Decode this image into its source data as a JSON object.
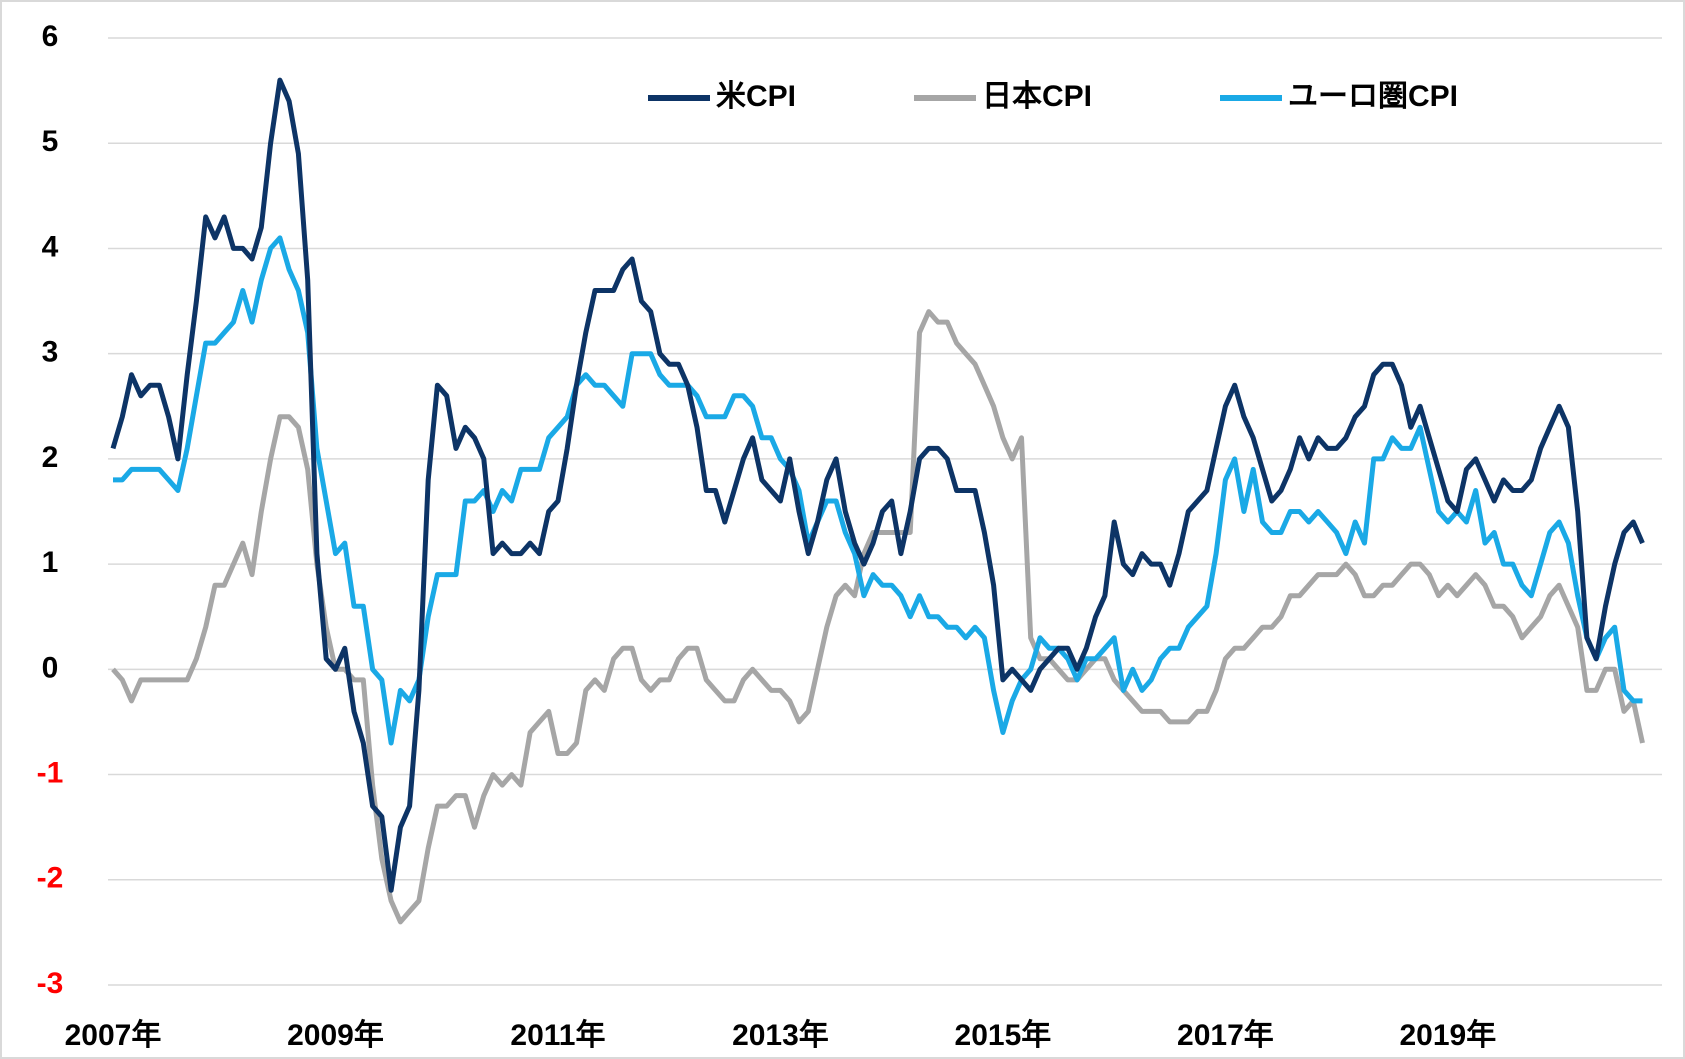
{
  "chart_data": {
    "type": "line",
    "categories": [
      "2007年",
      null,
      null,
      null,
      null,
      null,
      null,
      null,
      null,
      null,
      null,
      null,
      null,
      null,
      null,
      null,
      null,
      null,
      null,
      null,
      null,
      null,
      null,
      null,
      "2009年",
      null,
      null,
      null,
      null,
      null,
      null,
      null,
      null,
      null,
      null,
      null,
      null,
      null,
      null,
      null,
      null,
      null,
      null,
      null,
      null,
      null,
      null,
      null,
      "2011年",
      null,
      null,
      null,
      null,
      null,
      null,
      null,
      null,
      null,
      null,
      null,
      null,
      null,
      null,
      null,
      null,
      null,
      null,
      null,
      null,
      null,
      null,
      null,
      "2013年",
      null,
      null,
      null,
      null,
      null,
      null,
      null,
      null,
      null,
      null,
      null,
      null,
      null,
      null,
      null,
      null,
      null,
      null,
      null,
      null,
      null,
      null,
      null,
      "2015年",
      null,
      null,
      null,
      null,
      null,
      null,
      null,
      null,
      null,
      null,
      null,
      null,
      null,
      null,
      null,
      null,
      null,
      null,
      null,
      null,
      null,
      null,
      null,
      "2017年",
      null,
      null,
      null,
      null,
      null,
      null,
      null,
      null,
      null,
      null,
      null,
      null,
      null,
      null,
      null,
      null,
      null,
      null,
      null,
      null,
      null,
      null,
      null,
      "2019年",
      null,
      null,
      null,
      null,
      null,
      null,
      null,
      null,
      null,
      null,
      null,
      null,
      null,
      null,
      null,
      null,
      null,
      null,
      null,
      null,
      null
    ],
    "series": [
      {
        "name": "米CPI",
        "color": "#0d3466",
        "values": [
          2.1,
          2.4,
          2.8,
          2.6,
          2.7,
          2.7,
          2.4,
          2.0,
          2.8,
          3.5,
          4.3,
          4.1,
          4.3,
          4.0,
          4.0,
          3.9,
          4.2,
          5.0,
          5.6,
          5.4,
          4.9,
          3.7,
          1.1,
          0.1,
          0.0,
          0.2,
          -0.4,
          -0.7,
          -1.3,
          -1.4,
          -2.1,
          -1.5,
          -1.3,
          -0.2,
          1.8,
          2.7,
          2.6,
          2.1,
          2.3,
          2.2,
          2.0,
          1.1,
          1.2,
          1.1,
          1.1,
          1.2,
          1.1,
          1.5,
          1.6,
          2.1,
          2.7,
          3.2,
          3.6,
          3.6,
          3.6,
          3.8,
          3.9,
          3.5,
          3.4,
          3.0,
          2.9,
          2.9,
          2.7,
          2.3,
          1.7,
          1.7,
          1.4,
          1.7,
          2.0,
          2.2,
          1.8,
          1.7,
          1.6,
          2.0,
          1.5,
          1.1,
          1.4,
          1.8,
          2.0,
          1.5,
          1.2,
          1.0,
          1.2,
          1.5,
          1.6,
          1.1,
          1.5,
          2.0,
          2.1,
          2.1,
          2.0,
          1.7,
          1.7,
          1.7,
          1.3,
          0.8,
          -0.1,
          0.0,
          -0.1,
          -0.2,
          0.0,
          0.1,
          0.2,
          0.2,
          0.0,
          0.2,
          0.5,
          0.7,
          1.4,
          1.0,
          0.9,
          1.1,
          1.0,
          1.0,
          0.8,
          1.1,
          1.5,
          1.6,
          1.7,
          2.1,
          2.5,
          2.7,
          2.4,
          2.2,
          1.9,
          1.6,
          1.7,
          1.9,
          2.2,
          2.0,
          2.2,
          2.1,
          2.1,
          2.2,
          2.4,
          2.5,
          2.8,
          2.9,
          2.9,
          2.7,
          2.3,
          2.5,
          2.2,
          1.9,
          1.6,
          1.5,
          1.9,
          2.0,
          1.8,
          1.6,
          1.8,
          1.7,
          1.7,
          1.8,
          2.1,
          2.3,
          2.5,
          2.3,
          1.5,
          0.3,
          0.1,
          0.6,
          1.0,
          1.3,
          1.4,
          1.2
        ]
      },
      {
        "name": "日本CPI",
        "color": "#a6a6a6",
        "values": [
          0.0,
          -0.1,
          -0.3,
          -0.1,
          -0.1,
          -0.1,
          -0.1,
          -0.1,
          -0.1,
          0.1,
          0.4,
          0.8,
          0.8,
          1.0,
          1.2,
          0.9,
          1.5,
          2.0,
          2.4,
          2.4,
          2.3,
          1.9,
          1.0,
          0.4,
          0.0,
          0.0,
          -0.1,
          -0.1,
          -1.1,
          -1.8,
          -2.2,
          -2.4,
          -2.3,
          -2.2,
          -1.7,
          -1.3,
          -1.3,
          -1.2,
          -1.2,
          -1.5,
          -1.2,
          -1.0,
          -1.1,
          -1.0,
          -1.1,
          -0.6,
          -0.5,
          -0.4,
          -0.8,
          -0.8,
          -0.7,
          -0.2,
          -0.1,
          -0.2,
          0.1,
          0.2,
          0.2,
          -0.1,
          -0.2,
          -0.1,
          -0.1,
          0.1,
          0.2,
          0.2,
          -0.1,
          -0.2,
          -0.3,
          -0.3,
          -0.1,
          0.0,
          -0.1,
          -0.2,
          -0.2,
          -0.3,
          -0.5,
          -0.4,
          0.0,
          0.4,
          0.7,
          0.8,
          0.7,
          1.1,
          1.3,
          1.3,
          1.3,
          1.3,
          1.3,
          3.2,
          3.4,
          3.3,
          3.3,
          3.1,
          3.0,
          2.9,
          2.7,
          2.5,
          2.2,
          2.0,
          2.2,
          0.3,
          0.1,
          0.1,
          0.0,
          -0.1,
          -0.1,
          0.0,
          0.1,
          0.1,
          -0.1,
          -0.2,
          -0.3,
          -0.4,
          -0.4,
          -0.4,
          -0.5,
          -0.5,
          -0.5,
          -0.4,
          -0.4,
          -0.2,
          0.1,
          0.2,
          0.2,
          0.3,
          0.4,
          0.4,
          0.5,
          0.7,
          0.7,
          0.8,
          0.9,
          0.9,
          0.9,
          1.0,
          0.9,
          0.7,
          0.7,
          0.8,
          0.8,
          0.9,
          1.0,
          1.0,
          0.9,
          0.7,
          0.8,
          0.7,
          0.8,
          0.9,
          0.8,
          0.6,
          0.6,
          0.5,
          0.3,
          0.4,
          0.5,
          0.7,
          0.8,
          0.6,
          0.4,
          -0.2,
          -0.2,
          0.0,
          0.0,
          -0.4,
          -0.3,
          -0.7
        ]
      },
      {
        "name": "ユーロ圏CPI",
        "color": "#1aa9e6",
        "values": [
          1.8,
          1.8,
          1.9,
          1.9,
          1.9,
          1.9,
          1.8,
          1.7,
          2.1,
          2.6,
          3.1,
          3.1,
          3.2,
          3.3,
          3.6,
          3.3,
          3.7,
          4.0,
          4.1,
          3.8,
          3.6,
          3.2,
          2.1,
          1.6,
          1.1,
          1.2,
          0.6,
          0.6,
          0.0,
          -0.1,
          -0.7,
          -0.2,
          -0.3,
          -0.1,
          0.5,
          0.9,
          0.9,
          0.9,
          1.6,
          1.6,
          1.7,
          1.5,
          1.7,
          1.6,
          1.9,
          1.9,
          1.9,
          2.2,
          2.3,
          2.4,
          2.7,
          2.8,
          2.7,
          2.7,
          2.6,
          2.5,
          3.0,
          3.0,
          3.0,
          2.8,
          2.7,
          2.7,
          2.7,
          2.6,
          2.4,
          2.4,
          2.4,
          2.6,
          2.6,
          2.5,
          2.2,
          2.2,
          2.0,
          1.9,
          1.7,
          1.2,
          1.4,
          1.6,
          1.6,
          1.3,
          1.1,
          0.7,
          0.9,
          0.8,
          0.8,
          0.7,
          0.5,
          0.7,
          0.5,
          0.5,
          0.4,
          0.4,
          0.3,
          0.4,
          0.3,
          -0.2,
          -0.6,
          -0.3,
          -0.1,
          0.0,
          0.3,
          0.2,
          0.2,
          0.1,
          -0.1,
          0.1,
          0.1,
          0.2,
          0.3,
          -0.2,
          0.0,
          -0.2,
          -0.1,
          0.1,
          0.2,
          0.2,
          0.4,
          0.5,
          0.6,
          1.1,
          1.8,
          2.0,
          1.5,
          1.9,
          1.4,
          1.3,
          1.3,
          1.5,
          1.5,
          1.4,
          1.5,
          1.4,
          1.3,
          1.1,
          1.4,
          1.2,
          2.0,
          2.0,
          2.2,
          2.1,
          2.1,
          2.3,
          1.9,
          1.5,
          1.4,
          1.5,
          1.4,
          1.7,
          1.2,
          1.3,
          1.0,
          1.0,
          0.8,
          0.7,
          1.0,
          1.3,
          1.4,
          1.2,
          0.7,
          0.3,
          0.1,
          0.3,
          0.4,
          -0.2,
          -0.3,
          -0.3
        ]
      }
    ],
    "ylim": [
      -3,
      6
    ],
    "yticks": [
      -3,
      -2,
      -1,
      0,
      1,
      2,
      3,
      4,
      5,
      6
    ],
    "negative_tick_color": "#ff0000",
    "grid": true,
    "legend": "top"
  }
}
